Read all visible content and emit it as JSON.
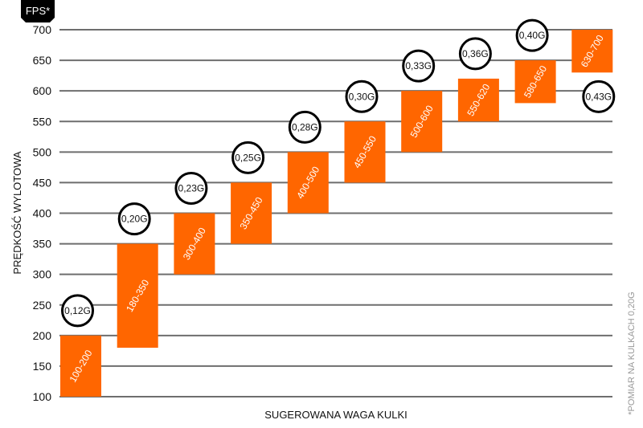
{
  "chart_data": {
    "type": "bar",
    "unit_badge": "FPS*",
    "xlabel": "SUGEROWANA WAGA KULKI",
    "ylabel": "PRĘDKOŚĆ WYLOTOWA",
    "footnote": "*POMIAR NA KULKACH 0,20G",
    "ylim": [
      100,
      700
    ],
    "yticks": [
      100,
      150,
      200,
      250,
      300,
      350,
      400,
      450,
      500,
      550,
      600,
      650,
      700
    ],
    "grid": true,
    "bar_color": "#ff6600",
    "bars": [
      {
        "range": [
          100,
          200
        ],
        "label": "100-200",
        "weight": "0,12G"
      },
      {
        "range": [
          180,
          350
        ],
        "label": "180-350",
        "weight": "0,20G"
      },
      {
        "range": [
          300,
          400
        ],
        "label": "300-400",
        "weight": "0,23G"
      },
      {
        "range": [
          350,
          450
        ],
        "label": "350-450",
        "weight": "0,25G"
      },
      {
        "range": [
          400,
          500
        ],
        "label": "400-500",
        "weight": "0,28G"
      },
      {
        "range": [
          450,
          550
        ],
        "label": "450-550",
        "weight": "0,30G"
      },
      {
        "range": [
          500,
          600
        ],
        "label": "500-600",
        "weight": "0,33G"
      },
      {
        "range": [
          550,
          620
        ],
        "label": "550-620",
        "weight": "0,36G"
      },
      {
        "range": [
          580,
          650
        ],
        "label": "580-650",
        "weight": "0,40G"
      },
      {
        "range": [
          630,
          700
        ],
        "label": "630-700",
        "weight": "0,43G",
        "weight_below": true
      }
    ]
  }
}
